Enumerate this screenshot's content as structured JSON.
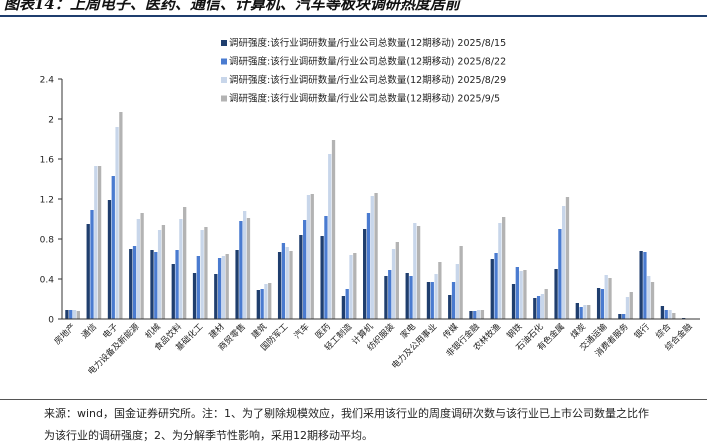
{
  "figure_title": "图表14：上周电子、医药、通信、计算机、汽车等板块调研热度居前",
  "source_note": "来源：wind，国金证券研究所。注：1、为了剔除规模效应，我们采用该行业的周度调研次数与该行业已上市公司数量之比作",
  "source_note_2": "为该行业的调研强度；2、为分解季节性影响，采用12期移动平均。",
  "colors": {
    "series": [
      "#1f3e6e",
      "#4a7bd0",
      "#c8d6ea",
      "#b3b3b3"
    ],
    "title_rule": "#1f3e6e"
  },
  "chart_data": {
    "type": "bar",
    "title": "",
    "xlabel": "",
    "ylabel": "",
    "ylim": [
      0,
      2.4
    ],
    "yticks": [
      "0",
      "0.4",
      "0.8",
      "1.2",
      "1.6",
      "2",
      "2.4"
    ],
    "grid": false,
    "legend_position": "top-left",
    "categories": [
      "房地产",
      "通信",
      "电子",
      "电力设备及新能源",
      "机械",
      "食品饮料",
      "基础化工",
      "建材",
      "商贸零售",
      "建筑",
      "国防军工",
      "汽车",
      "医药",
      "轻工制造",
      "计算机",
      "纺织服装",
      "家电",
      "电力及公用事业",
      "传媒",
      "非银行金融",
      "农林牧渔",
      "钢铁",
      "石油石化",
      "有色金属",
      "煤炭",
      "交通运输",
      "消费者服务",
      "银行",
      "综合",
      "综合金融"
    ],
    "series": [
      {
        "name": "调研强度:该行业调研数量/行业公司总数量(12期移动) 2025/8/15",
        "values": [
          0.09,
          0.95,
          1.19,
          0.7,
          0.69,
          0.55,
          0.46,
          0.45,
          0.69,
          0.29,
          0.67,
          0.84,
          0.83,
          0.23,
          0.9,
          0.43,
          0.46,
          0.37,
          0.24,
          0.08,
          0.6,
          0.35,
          0.21,
          0.5,
          0.16,
          0.31,
          0.05,
          0.68,
          0.13,
          0.01
        ]
      },
      {
        "name": "调研强度:该行业调研数量/行业公司总数量(12期移动) 2025/8/22",
        "values": [
          0.09,
          1.09,
          1.43,
          0.73,
          0.67,
          0.69,
          0.63,
          0.61,
          0.98,
          0.3,
          0.76,
          0.99,
          1.03,
          0.3,
          1.06,
          0.49,
          0.43,
          0.37,
          0.37,
          0.08,
          0.66,
          0.52,
          0.23,
          0.9,
          0.12,
          0.3,
          0.05,
          0.67,
          0.09,
          0.0
        ]
      },
      {
        "name": "调研强度:该行业调研数量/行业公司总数量(12期移动) 2025/8/29",
        "values": [
          0.09,
          1.53,
          1.92,
          1.0,
          0.89,
          1.0,
          0.89,
          0.63,
          1.08,
          0.35,
          0.72,
          1.24,
          1.65,
          0.64,
          1.23,
          0.7,
          0.96,
          0.45,
          0.55,
          0.09,
          0.96,
          0.48,
          0.25,
          1.13,
          0.14,
          0.44,
          0.22,
          0.43,
          0.09,
          0.0
        ]
      },
      {
        "name": "调研强度:该行业调研数量/行业公司总数量(12期移动) 2025/9/5",
        "values": [
          0.08,
          1.53,
          2.07,
          1.06,
          0.94,
          1.12,
          0.92,
          0.65,
          1.01,
          0.36,
          0.68,
          1.25,
          1.79,
          0.66,
          1.26,
          0.77,
          0.93,
          0.57,
          0.73,
          0.09,
          1.02,
          0.49,
          0.3,
          1.22,
          0.14,
          0.41,
          0.27,
          0.37,
          0.06,
          0.0
        ]
      }
    ]
  }
}
